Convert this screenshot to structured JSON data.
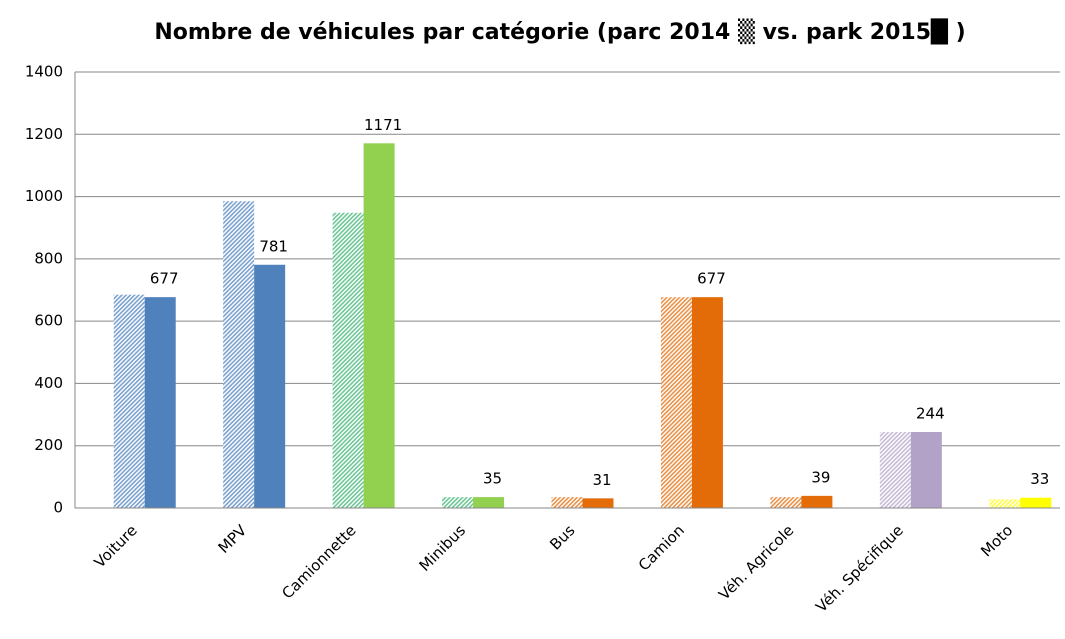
{
  "chart_data": {
    "type": "bar",
    "title": "Nombre de véhicules par catégorie (parc 2014 ▒ vs. park 2015█ )",
    "categories": [
      "Voiture",
      "MPV",
      "Camionnette",
      "Minibus",
      "Bus",
      "Camion",
      "Véh. Agricole",
      "Véh. Spécifique",
      "Moto"
    ],
    "series": [
      {
        "hatched": true,
        "colors": [
          "#4f81bd",
          "#4f81bd",
          "#3cb371",
          "#3cb371",
          "#e36c09",
          "#e36c09",
          "#e36c09",
          "#b3a2c7",
          "#ffff00"
        ],
        "values": [
          685,
          985,
          948,
          35,
          35,
          677,
          35,
          244,
          28
        ]
      },
      {
        "hatched": false,
        "show_labels": true,
        "colors": [
          "#4f81bd",
          "#4f81bd",
          "#92d050",
          "#92d050",
          "#e36c09",
          "#e36c09",
          "#e36c09",
          "#b3a2c7",
          "#ffff00"
        ],
        "values": [
          677,
          781,
          1171,
          35,
          31,
          677,
          39,
          244,
          33
        ]
      }
    ],
    "ylim": [
      0,
      1400
    ],
    "yticks": [
      0,
      200,
      400,
      600,
      800,
      1000,
      1200,
      1400
    ],
    "grid": true
  }
}
